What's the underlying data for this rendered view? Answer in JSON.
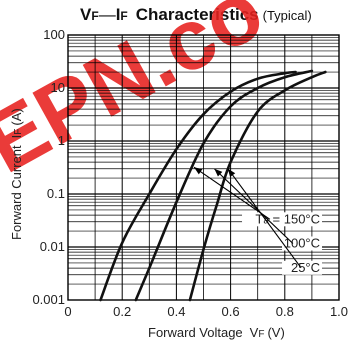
{
  "chart_data": {
    "type": "line",
    "title": "VF — IF Characteristics",
    "title_parts": {
      "v_main": "V",
      "v_sub": "F",
      "dash": "—",
      "i_main": "I",
      "i_sub": "F",
      "text": "Characteristics",
      "note": "(Typical)"
    },
    "xlabel": "Forward Voltage",
    "xlabel_symbol": "V",
    "xlabel_sub": "F",
    "xlabel_unit": "(V)",
    "ylabel": "Forward Current",
    "ylabel_symbol": "I",
    "ylabel_sub": "F",
    "ylabel_unit": "(A)",
    "xlim": [
      0,
      1.0
    ],
    "ylim": [
      0.001,
      100
    ],
    "yscale": "log",
    "grid": true,
    "xticks": [
      {
        "v": 0,
        "label": "0"
      },
      {
        "v": 0.2,
        "label": "0.2"
      },
      {
        "v": 0.4,
        "label": "0.4"
      },
      {
        "v": 0.6,
        "label": "0.6"
      },
      {
        "v": 0.8,
        "label": "0.8"
      },
      {
        "v": 1.0,
        "label": "1.0"
      }
    ],
    "yticks": [
      {
        "v": 0.001,
        "label": "0.001"
      },
      {
        "v": 0.01,
        "label": "0.01"
      },
      {
        "v": 0.1,
        "label": "0.1"
      },
      {
        "v": 1,
        "label": "1"
      },
      {
        "v": 10,
        "label": "10"
      },
      {
        "v": 100,
        "label": "100"
      }
    ],
    "legend_prefix": "T",
    "legend_prefix_sub": "a",
    "legend_eq": " = ",
    "series": [
      {
        "name": "150°C",
        "x": [
          0.12,
          0.2,
          0.3,
          0.4,
          0.5,
          0.6,
          0.7,
          0.8,
          0.84
        ],
        "y": [
          0.001,
          0.012,
          0.1,
          0.7,
          3.2,
          8.5,
          15,
          19,
          20
        ]
      },
      {
        "name": "100°C",
        "x": [
          0.25,
          0.3,
          0.4,
          0.5,
          0.6,
          0.7,
          0.8,
          0.9
        ],
        "y": [
          0.001,
          0.004,
          0.07,
          0.9,
          4.5,
          10,
          16,
          21
        ]
      },
      {
        "name": "25°C",
        "x": [
          0.45,
          0.5,
          0.55,
          0.6,
          0.7,
          0.8,
          0.9,
          0.95
        ],
        "y": [
          0.001,
          0.009,
          0.065,
          0.4,
          3.6,
          9,
          16,
          20
        ]
      }
    ],
    "colors": {
      "curve": "#111111",
      "grid": "#000000",
      "watermark": "#e8211e"
    },
    "watermark_text": "EPN.co"
  }
}
